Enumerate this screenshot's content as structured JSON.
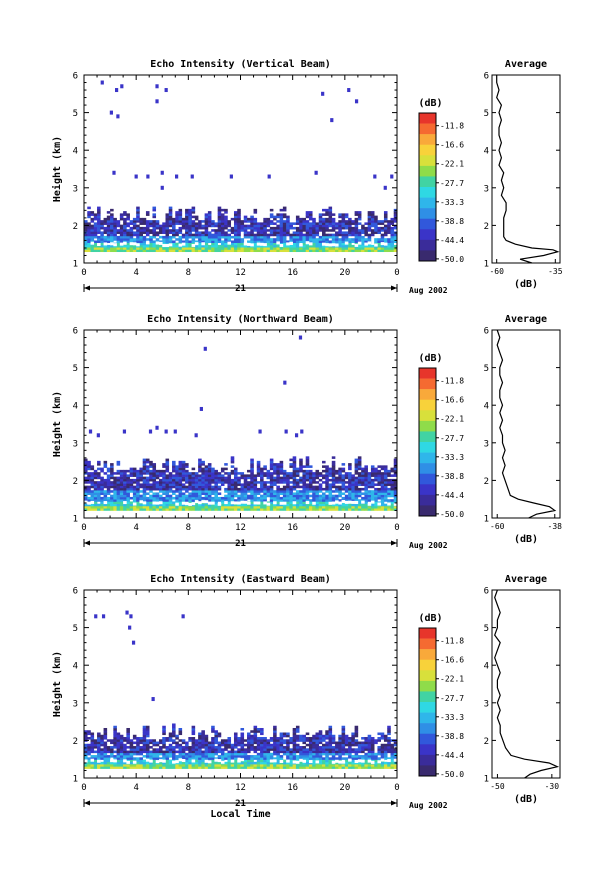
{
  "chart_data": [
    {
      "type": "heatmap",
      "title": "Echo Intensity (Vertical Beam)",
      "xlabel": "",
      "ylabel": "Height (km)",
      "x_ticks": [
        "0",
        "4",
        "8",
        "12",
        "16",
        "20",
        "0"
      ],
      "y_ticks": [
        "1",
        "2",
        "3",
        "4",
        "5",
        "6"
      ],
      "xlim": [
        0,
        24
      ],
      "ylim": [
        1,
        6
      ],
      "date_label": "21",
      "month_label": "Aug 2002",
      "colorbar": {
        "unit_label": "(dB)",
        "levels": [
          "-11.8",
          "-16.6",
          "-22.1",
          "-27.7",
          "-33.3",
          "-38.8",
          "-44.4",
          "-50.0"
        ]
      },
      "features": {
        "main_top_km": 2.5,
        "main_bottom_km": 1.3,
        "scatter": [
          [
            1.4,
            5.8
          ],
          [
            2.5,
            5.6
          ],
          [
            2.9,
            5.7
          ],
          [
            5.6,
            5.7
          ],
          [
            6.3,
            5.6
          ],
          [
            2.1,
            5.0
          ],
          [
            2.6,
            4.9
          ],
          [
            5.6,
            5.3
          ],
          [
            18.3,
            5.5
          ],
          [
            19.0,
            4.8
          ],
          [
            20.3,
            5.6
          ],
          [
            20.9,
            5.3
          ],
          [
            2.3,
            3.4
          ],
          [
            4.0,
            3.3
          ],
          [
            4.9,
            3.3
          ],
          [
            6.0,
            3.4
          ],
          [
            7.1,
            3.3
          ],
          [
            8.3,
            3.3
          ],
          [
            11.3,
            3.3
          ],
          [
            14.2,
            3.3
          ],
          [
            17.8,
            3.4
          ],
          [
            22.3,
            3.3
          ],
          [
            23.6,
            3.3
          ],
          [
            6.0,
            3.0
          ],
          [
            23.1,
            3.0
          ]
        ]
      },
      "average": {
        "title": "Average",
        "xlabel": "(dB)",
        "x_ticks": [
          "-60",
          "-35"
        ],
        "xlim": [
          -62,
          -33
        ],
        "heights": [
          1.0,
          1.1,
          1.2,
          1.3,
          1.35,
          1.4,
          1.5,
          1.6,
          1.7,
          1.8,
          2.0,
          2.2,
          2.4,
          2.6,
          2.8,
          3.0,
          3.2,
          3.4,
          3.6,
          3.8,
          4.0,
          4.2,
          4.4,
          4.6,
          4.8,
          5.0,
          5.2,
          5.4,
          5.6,
          5.8,
          6.0
        ],
        "values": [
          -45,
          -50,
          -40,
          -34,
          -36,
          -45,
          -52,
          -56,
          -57,
          -57,
          -57,
          -57,
          -56,
          -56,
          -58,
          -57,
          -58,
          -57,
          -59,
          -58,
          -59,
          -58,
          -59,
          -59,
          -58,
          -59,
          -58,
          -60,
          -59,
          -60,
          -60
        ]
      }
    },
    {
      "type": "heatmap",
      "title": "Echo Intensity (Northward Beam)",
      "xlabel": "",
      "ylabel": "Height (km)",
      "x_ticks": [
        "0",
        "4",
        "8",
        "12",
        "16",
        "20",
        "0"
      ],
      "y_ticks": [
        "1",
        "2",
        "3",
        "4",
        "5",
        "6"
      ],
      "xlim": [
        0,
        24
      ],
      "ylim": [
        1,
        6
      ],
      "date_label": "21",
      "month_label": "Aug 2002",
      "colorbar": {
        "unit_label": "(dB)",
        "levels": [
          "-11.8",
          "-16.6",
          "-22.1",
          "-27.7",
          "-33.3",
          "-38.8",
          "-44.4",
          "-50.0"
        ]
      },
      "features": {
        "main_top_km": 2.6,
        "main_bottom_km": 1.2,
        "scatter": [
          [
            16.6,
            5.8
          ],
          [
            9.3,
            5.5
          ],
          [
            15.4,
            4.6
          ],
          [
            9.0,
            3.9
          ],
          [
            0.5,
            3.3
          ],
          [
            1.1,
            3.2
          ],
          [
            3.1,
            3.3
          ],
          [
            5.1,
            3.3
          ],
          [
            5.6,
            3.4
          ],
          [
            6.3,
            3.3
          ],
          [
            7.0,
            3.3
          ],
          [
            8.6,
            3.2
          ],
          [
            13.5,
            3.3
          ],
          [
            15.5,
            3.3
          ],
          [
            16.3,
            3.2
          ],
          [
            16.7,
            3.3
          ]
        ]
      },
      "average": {
        "title": "Average",
        "xlabel": "(dB)",
        "x_ticks": [
          "-60",
          "-38"
        ],
        "xlim": [
          -62,
          -36
        ],
        "heights": [
          1.0,
          1.1,
          1.2,
          1.3,
          1.4,
          1.5,
          1.6,
          1.8,
          2.0,
          2.2,
          2.4,
          2.6,
          2.8,
          3.0,
          3.2,
          3.4,
          3.6,
          3.8,
          4.0,
          4.2,
          4.4,
          4.6,
          4.8,
          5.0,
          5.2,
          5.4,
          5.6,
          5.8,
          6.0
        ],
        "values": [
          -48,
          -45,
          -38,
          -40,
          -46,
          -52,
          -55,
          -56,
          -57,
          -58,
          -57,
          -58,
          -57,
          -58,
          -58,
          -59,
          -58,
          -59,
          -58,
          -59,
          -59,
          -58,
          -59,
          -59,
          -58,
          -59,
          -60,
          -59,
          -60
        ]
      }
    },
    {
      "type": "heatmap",
      "title": "Echo Intensity (Eastward Beam)",
      "xlabel": "Local Time",
      "ylabel": "Height (km)",
      "x_ticks": [
        "0",
        "4",
        "8",
        "12",
        "16",
        "20",
        "0"
      ],
      "y_ticks": [
        "1",
        "2",
        "3",
        "4",
        "5",
        "6"
      ],
      "xlim": [
        0,
        24
      ],
      "ylim": [
        1,
        6
      ],
      "date_label": "21",
      "month_label": "Aug 2002",
      "colorbar": {
        "unit_label": "(dB)",
        "levels": [
          "-11.8",
          "-16.6",
          "-22.1",
          "-27.7",
          "-33.3",
          "-38.8",
          "-44.4",
          "-50.0"
        ]
      },
      "features": {
        "main_top_km": 2.4,
        "main_bottom_km": 1.25,
        "scatter": [
          [
            0.9,
            5.3
          ],
          [
            1.5,
            5.3
          ],
          [
            3.3,
            5.4
          ],
          [
            3.6,
            5.3
          ],
          [
            7.6,
            5.3
          ],
          [
            3.5,
            5.0
          ],
          [
            3.8,
            4.6
          ],
          [
            5.3,
            3.1
          ]
        ]
      },
      "average": {
        "title": "Average",
        "xlabel": "(dB)",
        "x_ticks": [
          "-50",
          "-30"
        ],
        "xlim": [
          -52,
          -27
        ],
        "heights": [
          1.0,
          1.1,
          1.2,
          1.3,
          1.4,
          1.5,
          1.6,
          1.8,
          2.0,
          2.2,
          2.4,
          2.6,
          2.8,
          3.0,
          3.2,
          3.4,
          3.6,
          3.8,
          4.0,
          4.2,
          4.4,
          4.6,
          4.8,
          5.0,
          5.2,
          5.4,
          5.6,
          5.8,
          6.0
        ],
        "values": [
          -40,
          -38,
          -34,
          -28,
          -31,
          -40,
          -45,
          -47,
          -48,
          -49,
          -49,
          -50,
          -49,
          -50,
          -49,
          -50,
          -50,
          -49,
          -50,
          -51,
          -50,
          -49,
          -51,
          -50,
          -50,
          -49,
          -50,
          -51,
          -50
        ]
      }
    }
  ],
  "colors": {
    "scale": [
      "#e7352b",
      "#f56a31",
      "#f9a93a",
      "#f8d23a",
      "#d8e03b",
      "#8fdc4a",
      "#41d3a3",
      "#2fd8e3",
      "#2fb6ea",
      "#2f8fe6",
      "#3158db",
      "#3a34c8",
      "#3a2c9a",
      "#392a6e"
    ]
  }
}
